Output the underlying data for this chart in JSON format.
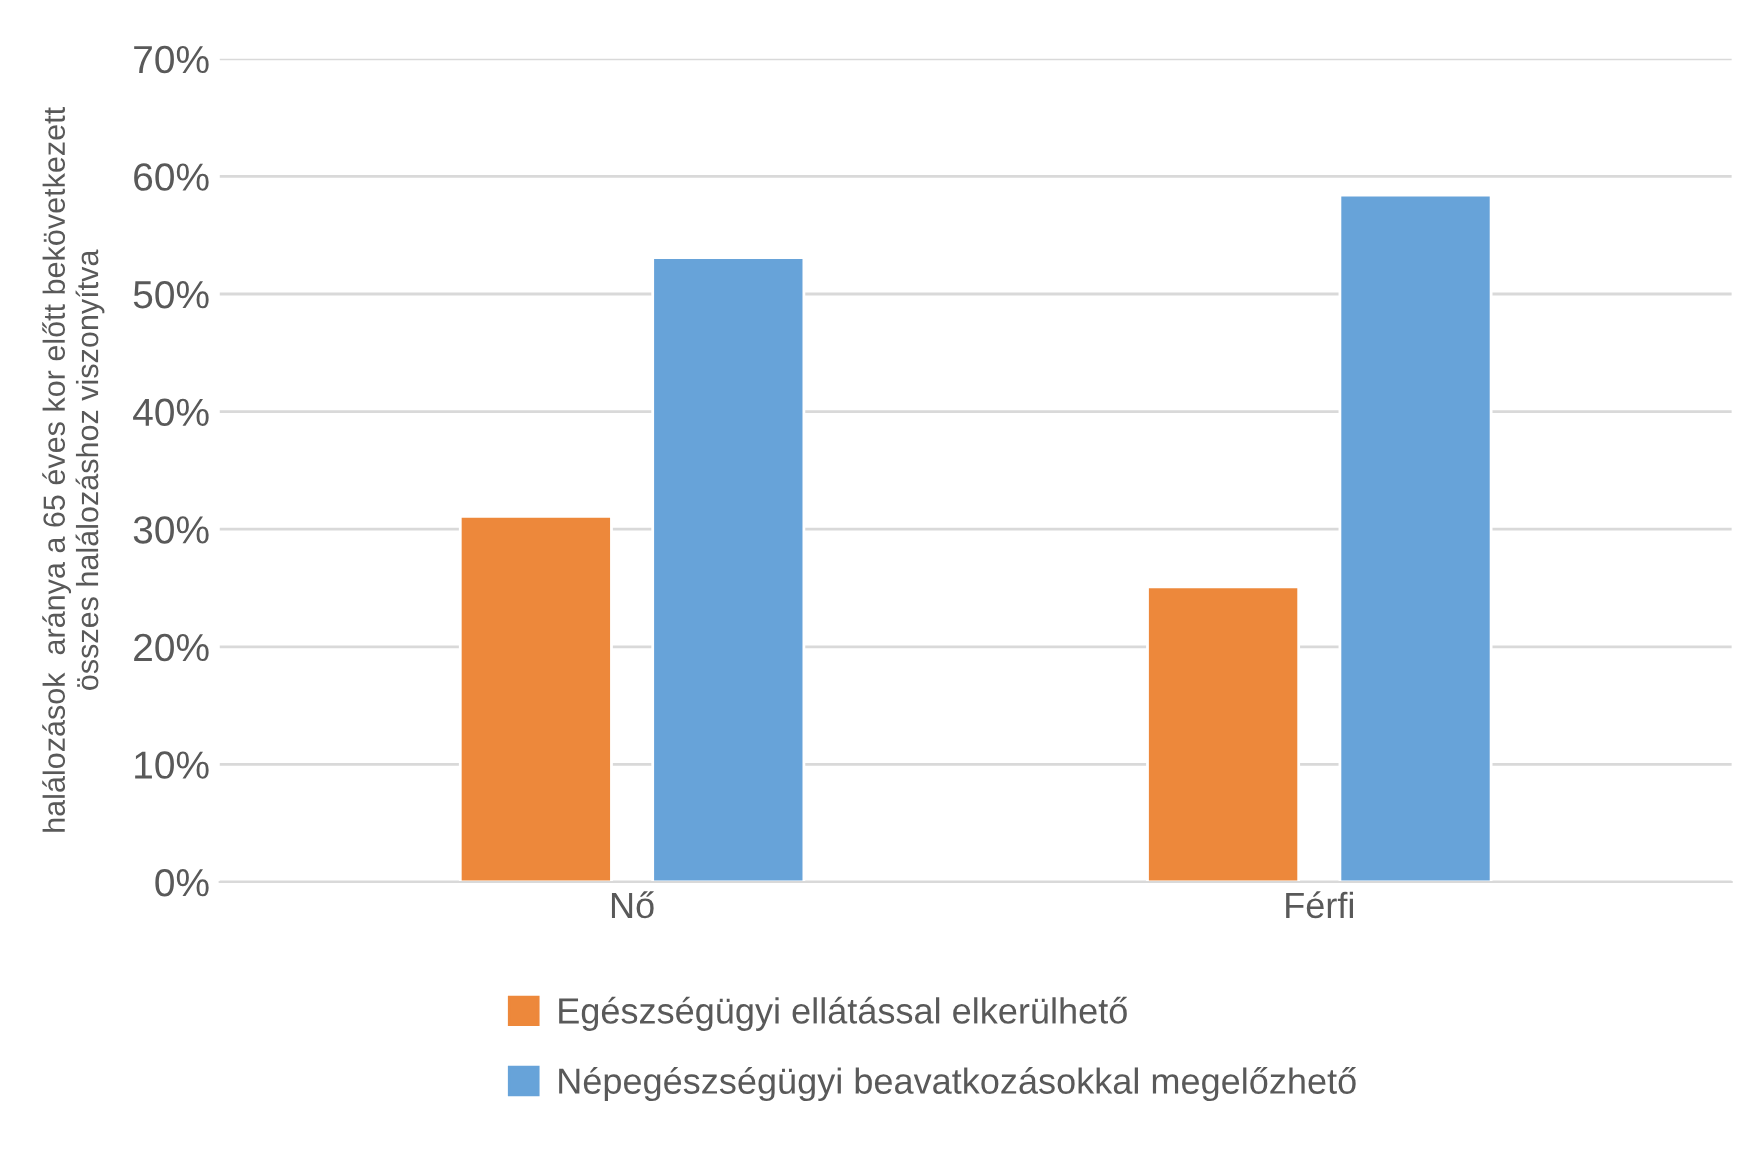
{
  "chart_data": {
    "type": "bar",
    "ylabel": "halálozások  aránya a 65 éves kor előtt bekövetkezett\nösszes halálozáshoz viszonyítva",
    "categories": [
      "Nő",
      "Férfi"
    ],
    "series": [
      {
        "name": "Egészségügyi ellátással elkerülhető",
        "color": "#ed883b",
        "values": [
          31.1,
          25.1
        ]
      },
      {
        "name": "Népegészségügyi beavatkozásokkal megelőzhető",
        "color": "#67a3d9",
        "values": [
          53.1,
          58.4
        ]
      }
    ],
    "ylim": [
      0,
      70
    ],
    "yticks": [
      {
        "value": 0,
        "label": "0%"
      },
      {
        "value": 10,
        "label": "10%"
      },
      {
        "value": 20,
        "label": "20%"
      },
      {
        "value": 30,
        "label": "30%"
      },
      {
        "value": 40,
        "label": "40%"
      },
      {
        "value": 50,
        "label": "50%"
      },
      {
        "value": 60,
        "label": "60%"
      },
      {
        "value": 70,
        "label": "70%"
      }
    ],
    "grid": "y",
    "legend": "bottom"
  }
}
